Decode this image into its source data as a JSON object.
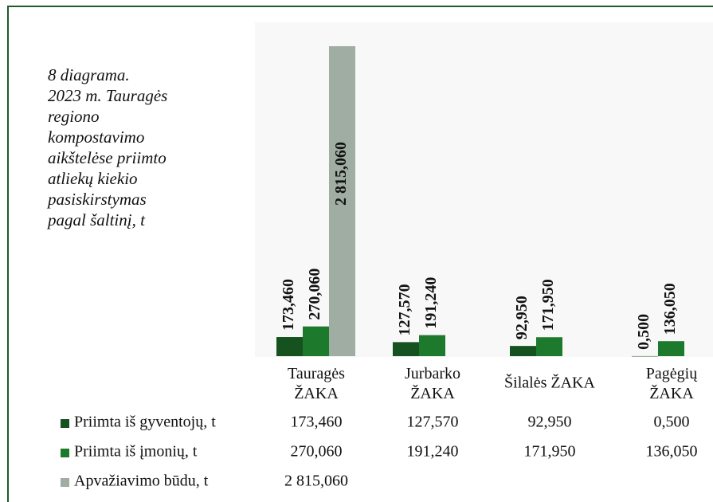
{
  "chart_data": {
    "type": "bar",
    "title": [
      "8 diagrama.",
      "2023 m. Tauragės",
      "regiono",
      "kompostavimo",
      "aikštelėse priimto",
      "atliekų kiekio",
      "pasiskirstymas",
      "pagal šaltinį, t"
    ],
    "categories": [
      "Tauragės ŽAKA",
      "Jurbarko ŽAKA",
      "Šilalės ŽAKA",
      "Pagėgių ŽAKA"
    ],
    "series": [
      {
        "name": "Priimta iš gyventojų, t",
        "color": "#15521f",
        "values": [
          173.46,
          127.57,
          92.95,
          0.5
        ],
        "value_labels": [
          "173,460",
          "127,570",
          "92,950",
          "0,500"
        ]
      },
      {
        "name": "Priimta iš įmonių, t",
        "color": "#1d7a2c",
        "values": [
          270.06,
          191.24,
          171.95,
          136.05
        ],
        "value_labels": [
          "270,060",
          "191,240",
          "171,950",
          "136,050"
        ]
      },
      {
        "name": "Apvažiavimo būdu, t",
        "color": "#9fada2",
        "values": [
          2815.06,
          null,
          null,
          null
        ],
        "value_labels": [
          "2 815,060",
          null,
          null,
          null
        ]
      }
    ]
  }
}
